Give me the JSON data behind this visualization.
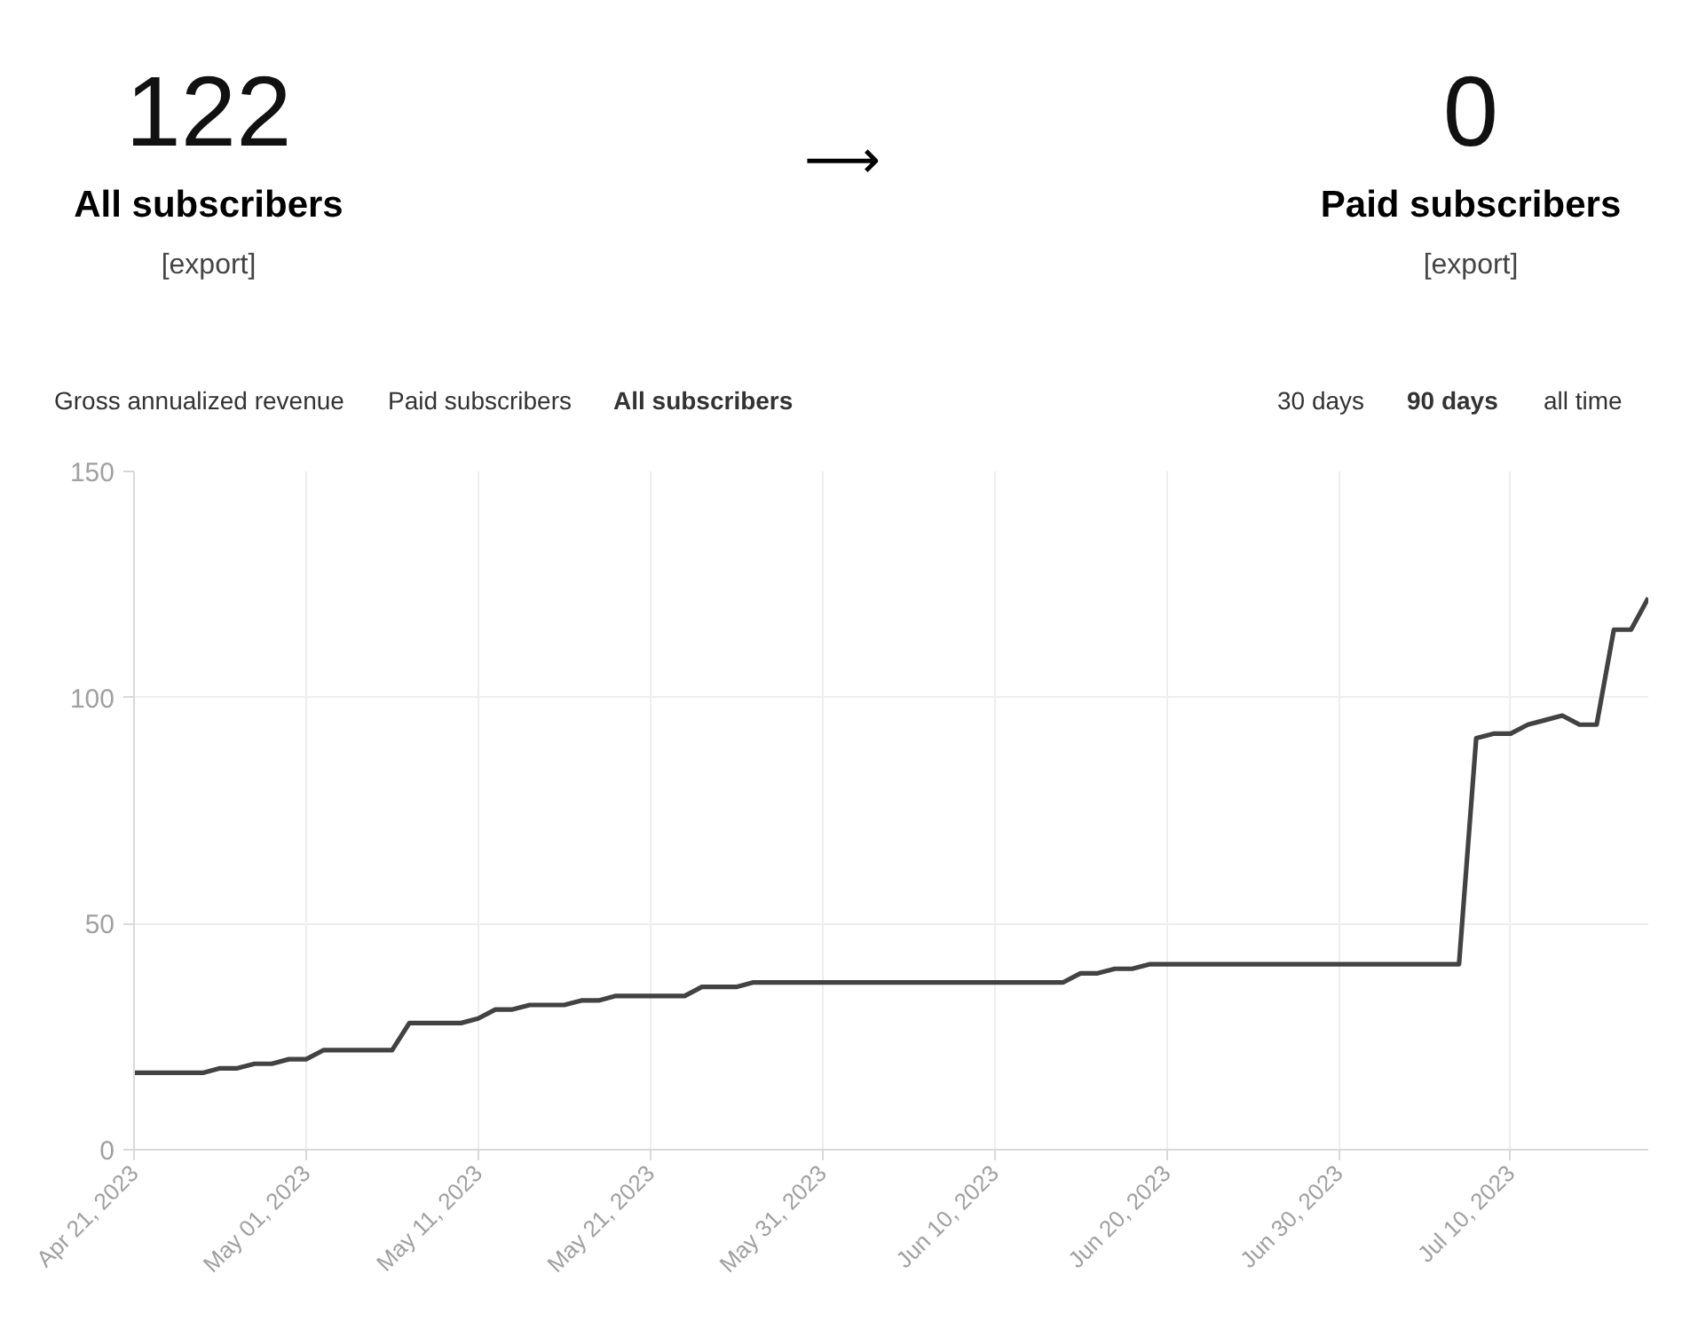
{
  "chart_data": {
    "type": "line",
    "annotations": [
      "122",
      "All subscribers",
      "[export]",
      "⟶",
      "0",
      "Paid subscribers",
      "[export]",
      "Gross annualized revenue",
      "Paid subscribers",
      "All subscribers",
      "30 days",
      "90 days",
      "all time"
    ],
    "x": [
      "2023-04-21",
      "2023-04-22",
      "2023-04-23",
      "2023-04-24",
      "2023-04-25",
      "2023-04-26",
      "2023-04-27",
      "2023-04-28",
      "2023-04-29",
      "2023-04-30",
      "2023-05-01",
      "2023-05-02",
      "2023-05-03",
      "2023-05-04",
      "2023-05-05",
      "2023-05-06",
      "2023-05-07",
      "2023-05-08",
      "2023-05-09",
      "2023-05-10",
      "2023-05-11",
      "2023-05-12",
      "2023-05-13",
      "2023-05-14",
      "2023-05-15",
      "2023-05-16",
      "2023-05-17",
      "2023-05-18",
      "2023-05-19",
      "2023-05-20",
      "2023-05-21",
      "2023-05-22",
      "2023-05-23",
      "2023-05-24",
      "2023-05-25",
      "2023-05-26",
      "2023-05-27",
      "2023-05-28",
      "2023-05-29",
      "2023-05-30",
      "2023-05-31",
      "2023-06-01",
      "2023-06-02",
      "2023-06-03",
      "2023-06-04",
      "2023-06-05",
      "2023-06-06",
      "2023-06-07",
      "2023-06-08",
      "2023-06-09",
      "2023-06-10",
      "2023-06-11",
      "2023-06-12",
      "2023-06-13",
      "2023-06-14",
      "2023-06-15",
      "2023-06-16",
      "2023-06-17",
      "2023-06-18",
      "2023-06-19",
      "2023-06-20",
      "2023-06-21",
      "2023-06-22",
      "2023-06-23",
      "2023-06-24",
      "2023-06-25",
      "2023-06-26",
      "2023-06-27",
      "2023-06-28",
      "2023-06-29",
      "2023-06-30",
      "2023-07-01",
      "2023-07-02",
      "2023-07-03",
      "2023-07-04",
      "2023-07-05",
      "2023-07-06",
      "2023-07-07",
      "2023-07-08",
      "2023-07-09",
      "2023-07-10",
      "2023-07-11",
      "2023-07-12",
      "2023-07-13",
      "2023-07-14",
      "2023-07-15",
      "2023-07-16",
      "2023-07-17",
      "2023-07-18"
    ],
    "series": [
      {
        "color": "#424242",
        "values": [
          17,
          17,
          17,
          17,
          17,
          18,
          18,
          19,
          19,
          20,
          20,
          22,
          22,
          22,
          22,
          22,
          28,
          28,
          28,
          28,
          29,
          31,
          31,
          32,
          32,
          32,
          33,
          33,
          34,
          34,
          34,
          34,
          34,
          36,
          36,
          36,
          37,
          37,
          37,
          37,
          37,
          37,
          37,
          37,
          37,
          37,
          37,
          37,
          37,
          37,
          37,
          37,
          37,
          37,
          37,
          39,
          39,
          40,
          40,
          41,
          41,
          41,
          41,
          41,
          41,
          41,
          41,
          41,
          41,
          41,
          41,
          41,
          41,
          41,
          41,
          41,
          41,
          41,
          91,
          92,
          92,
          94,
          95,
          96,
          94,
          94,
          115,
          115,
          122
        ]
      }
    ],
    "xlim": [
      "2023-04-21",
      "2023-07-18"
    ],
    "xticks": [
      {
        "value": "2023-04-21",
        "label": "Apr 21, 2023"
      },
      {
        "value": "2023-05-01",
        "label": "May 01, 2023"
      },
      {
        "value": "2023-05-11",
        "label": "May 11, 2023"
      },
      {
        "value": "2023-05-21",
        "label": "May 21, 2023"
      },
      {
        "value": "2023-05-31",
        "label": "May 31, 2023"
      },
      {
        "value": "2023-06-10",
        "label": "Jun 10, 2023"
      },
      {
        "value": "2023-06-20",
        "label": "Jun 20, 2023"
      },
      {
        "value": "2023-06-30",
        "label": "Jun 30, 2023"
      },
      {
        "value": "2023-07-10",
        "label": "Jul 10, 2023"
      }
    ],
    "ylim": [
      0,
      150
    ],
    "yticks": [
      0,
      50,
      100,
      150
    ],
    "grid": true,
    "marker": "none",
    "line_style": "solid"
  }
}
